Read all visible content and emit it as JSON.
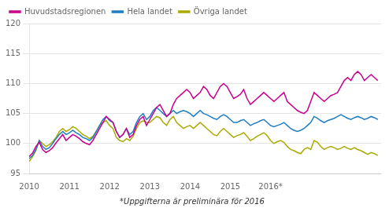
{
  "chart_data": {
    "type": "line",
    "annotations": [
      "*Uppgifterna är preliminära för 2016"
    ],
    "x": [
      2010,
      2010.083333,
      2010.166667,
      2010.25,
      2010.333333,
      2010.416667,
      2010.5,
      2010.583333,
      2010.666667,
      2010.75,
      2010.833333,
      2010.916667,
      2011,
      2011.083333,
      2011.166667,
      2011.25,
      2011.333333,
      2011.416667,
      2011.5,
      2011.583333,
      2011.666667,
      2011.75,
      2011.833333,
      2011.916667,
      2012,
      2012.083333,
      2012.166667,
      2012.25,
      2012.333333,
      2012.416667,
      2012.5,
      2012.583333,
      2012.666667,
      2012.75,
      2012.833333,
      2012.916667,
      2013,
      2013.083333,
      2013.166667,
      2013.25,
      2013.333333,
      2013.416667,
      2013.5,
      2013.583333,
      2013.666667,
      2013.75,
      2013.833333,
      2013.916667,
      2014,
      2014.083333,
      2014.166667,
      2014.25,
      2014.333333,
      2014.416667,
      2014.5,
      2014.583333,
      2014.666667,
      2014.75,
      2014.833333,
      2014.916667,
      2015,
      2015.083333,
      2015.166667,
      2015.25,
      2015.333333,
      2015.416667,
      2015.5,
      2015.583333,
      2015.666667,
      2015.75,
      2015.833333,
      2015.916667,
      2016,
      2016.083333,
      2016.166667,
      2016.25,
      2016.333333,
      2016.416667,
      2016.5,
      2016.583333,
      2016.666667,
      2016.75,
      2016.833333,
      2016.916667,
      2017,
      2017.083333,
      2017.166667,
      2017.25,
      2017.333333,
      2017.416667,
      2017.5,
      2017.583333,
      2017.666667,
      2017.75,
      2017.833333,
      2017.916667,
      2018,
      2018.083333,
      2018.166667,
      2018.25,
      2018.333333,
      2018.416667,
      2018.5,
      2018.583333,
      2018.666667
    ],
    "series": [
      {
        "name": "Huvudstadsregionen",
        "color": "#C8008F",
        "values": [
          97.8,
          98.4,
          99.5,
          100.2,
          99.0,
          98.5,
          98.8,
          99.3,
          100.1,
          100.8,
          101.5,
          100.5,
          101.0,
          101.5,
          101.2,
          100.8,
          100.3,
          100.0,
          99.8,
          100.5,
          101.5,
          102.5,
          103.5,
          104.5,
          104.0,
          103.5,
          102.0,
          101.0,
          101.5,
          102.5,
          101.0,
          101.5,
          103.0,
          104.0,
          104.5,
          103.0,
          104.0,
          105.0,
          106.0,
          106.5,
          105.5,
          104.5,
          105.0,
          106.5,
          107.5,
          108.0,
          108.5,
          109.0,
          108.5,
          107.5,
          108.0,
          108.5,
          109.5,
          109.0,
          108.0,
          107.5,
          108.5,
          109.5,
          110.0,
          109.5,
          108.5,
          107.5,
          107.8,
          108.2,
          109.0,
          107.5,
          106.5,
          107.0,
          107.5,
          108.0,
          108.5,
          108.0,
          107.5,
          107.0,
          107.5,
          108.0,
          108.5,
          107.0,
          106.5,
          106.0,
          105.5,
          105.2,
          105.0,
          105.5,
          107.0,
          108.5,
          108.0,
          107.5,
          107.0,
          107.5,
          108.0,
          108.2,
          108.5,
          109.5,
          110.5,
          111.0,
          110.5,
          111.5,
          112.0,
          111.5,
          110.5,
          111.0,
          111.5,
          111.0,
          110.5
        ]
      },
      {
        "name": "Hela landet",
        "color": "#1F7EC2",
        "values": [
          97.5,
          98.0,
          99.0,
          100.5,
          99.5,
          99.0,
          99.3,
          100.0,
          100.8,
          101.5,
          102.0,
          101.5,
          101.8,
          102.2,
          101.8,
          101.5,
          101.0,
          100.8,
          100.5,
          101.0,
          102.0,
          103.0,
          104.0,
          104.5,
          103.8,
          103.5,
          102.0,
          101.0,
          101.5,
          102.5,
          101.5,
          102.0,
          103.5,
          104.5,
          105.0,
          104.0,
          104.5,
          105.5,
          106.0,
          105.5,
          105.0,
          104.5,
          105.0,
          105.5,
          105.0,
          105.3,
          105.5,
          105.3,
          105.0,
          104.5,
          105.0,
          105.5,
          105.0,
          104.8,
          104.5,
          104.2,
          104.0,
          104.5,
          104.8,
          104.5,
          104.0,
          103.5,
          103.5,
          103.8,
          104.0,
          103.5,
          103.0,
          103.3,
          103.5,
          103.8,
          104.0,
          103.5,
          103.0,
          102.8,
          103.0,
          103.2,
          103.5,
          103.0,
          102.5,
          102.2,
          102.0,
          102.2,
          102.5,
          103.0,
          103.5,
          104.5,
          104.2,
          103.8,
          103.5,
          103.8,
          104.0,
          104.2,
          104.5,
          104.8,
          104.5,
          104.2,
          104.0,
          104.3,
          104.5,
          104.3,
          104.0,
          104.2,
          104.5,
          104.3,
          104.0
        ]
      },
      {
        "name": "Övriga landet",
        "color": "#AAAA00",
        "values": [
          97.0,
          97.8,
          98.8,
          100.5,
          100.0,
          99.5,
          99.8,
          100.3,
          101.0,
          102.0,
          102.5,
          102.0,
          102.3,
          102.8,
          102.5,
          102.0,
          101.5,
          101.2,
          100.8,
          101.2,
          102.0,
          103.0,
          103.5,
          103.8,
          103.0,
          102.5,
          101.0,
          100.5,
          100.3,
          100.8,
          100.5,
          101.2,
          102.5,
          103.5,
          103.8,
          103.5,
          103.5,
          104.0,
          104.5,
          104.3,
          103.5,
          103.0,
          104.0,
          104.5,
          103.5,
          103.0,
          102.5,
          102.8,
          103.0,
          102.5,
          103.0,
          103.5,
          103.0,
          102.5,
          102.0,
          101.5,
          101.3,
          102.0,
          102.5,
          102.0,
          101.5,
          101.0,
          101.3,
          101.5,
          101.8,
          101.2,
          100.5,
          100.8,
          101.2,
          101.5,
          101.8,
          101.3,
          100.5,
          100.0,
          100.3,
          100.5,
          100.2,
          99.5,
          99.0,
          98.8,
          98.5,
          98.3,
          99.0,
          99.3,
          99.0,
          100.5,
          100.2,
          99.5,
          99.0,
          99.3,
          99.5,
          99.3,
          99.0,
          99.2,
          99.5,
          99.2,
          99.0,
          99.3,
          99.0,
          98.8,
          98.5,
          98.2,
          98.5,
          98.3,
          98.0
        ]
      }
    ],
    "xlim": [
      2010,
      2018.75
    ],
    "xticks": [
      2010,
      2011,
      2012,
      2013,
      2014,
      2015,
      {
        "value": 2016,
        "label": "2016*"
      }
    ],
    "ylim": [
      95,
      120
    ],
    "yticks": [
      95,
      100,
      105,
      110,
      115,
      120
    ],
    "grid": "y",
    "legend": "upper left"
  }
}
